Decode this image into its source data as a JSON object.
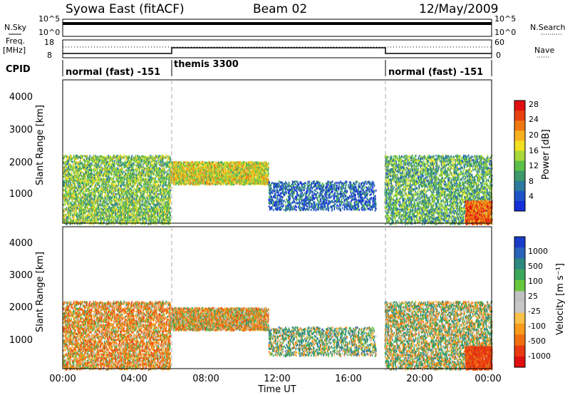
{
  "header": {
    "station": "Syowa East (fitACF)",
    "beam": "Beam 02",
    "date": "12/May/2009"
  },
  "top_panel": {
    "left_label": "N.Sky",
    "right_label": "N.Search",
    "ticks": [
      "10^5",
      "10^0"
    ],
    "right_ticks": [
      "10^5",
      "10^0"
    ]
  },
  "freq_panel": {
    "left_label_1": "Freq.",
    "left_label_2": "[MHz]",
    "ticks": [
      "18",
      "8"
    ],
    "right_label": "Nave",
    "right_ticks": [
      "60",
      "0"
    ]
  },
  "cpid": {
    "label": "CPID",
    "segments": [
      {
        "start_hour": 0,
        "end_hour": 6,
        "text": "normal (fast) -151"
      },
      {
        "start_hour": 6,
        "end_hour": 18,
        "text": "themis 3300"
      },
      {
        "start_hour": 18,
        "end_hour": 24,
        "text": "normal (fast) -151"
      }
    ]
  },
  "x_axis": {
    "label": "Time UT",
    "ticks": [
      "00:00",
      "04:00",
      "08:00",
      "12:00",
      "16:00",
      "20:00",
      "00:00"
    ]
  },
  "power_panel": {
    "ylabel": "Slant Range [km]",
    "yticks": [
      "1000",
      "2000",
      "3000",
      "4000"
    ],
    "colorbar_label": "Power [dB]",
    "colorbar_ticks": [
      "4",
      "8",
      "12",
      "16",
      "20",
      "24",
      "28"
    ],
    "colors": [
      "#1530d8",
      "#1e54c8",
      "#2e7a9c",
      "#3c9a6c",
      "#5cc04a",
      "#a8d83a",
      "#f0e020",
      "#f8b020",
      "#f07810",
      "#e84010",
      "#e01010"
    ]
  },
  "velocity_panel": {
    "ylabel": "Slant Range [km]",
    "yticks": [
      "1000",
      "2000",
      "3000",
      "4000"
    ],
    "colorbar_label": "Velocity [m s⁻¹]",
    "colorbar_ticks": [
      "1000",
      "500",
      "100",
      "25",
      "-25",
      "-100",
      "-500",
      "-1000"
    ],
    "colors": [
      "#1a3cc8",
      "#2a64b8",
      "#2e8a7e",
      "#3ca85a",
      "#68c83c",
      "#c0c0c0",
      "#c8c8c8",
      "#f8c048",
      "#f89a1c",
      "#f07010",
      "#e83a10",
      "#e01010"
    ]
  },
  "chart_data": {
    "type": "heatmap",
    "x_range_hours": [
      0,
      24
    ],
    "y_range_km": [
      180,
      4600
    ],
    "mode_changes_hours": [
      6,
      18
    ],
    "echo_regions": [
      {
        "t0": 0.0,
        "t1": 6.0,
        "r0": 180,
        "r1": 2300,
        "density": 0.35,
        "power_db": 14,
        "velocity": -150
      },
      {
        "t0": 6.0,
        "t1": 11.5,
        "r0": 1400,
        "r1": 2100,
        "density": 0.55,
        "power_db": 18,
        "velocity": -100
      },
      {
        "t0": 11.5,
        "t1": 17.5,
        "r0": 600,
        "r1": 1500,
        "density": 0.25,
        "power_db": 6,
        "velocity": 100
      },
      {
        "t0": 18.0,
        "t1": 24.0,
        "r0": 180,
        "r1": 2300,
        "density": 0.3,
        "power_db": 12,
        "velocity": 25
      },
      {
        "t0": 22.5,
        "t1": 24.0,
        "r0": 180,
        "r1": 900,
        "density": 0.6,
        "power_db": 26,
        "velocity": -500
      }
    ]
  }
}
